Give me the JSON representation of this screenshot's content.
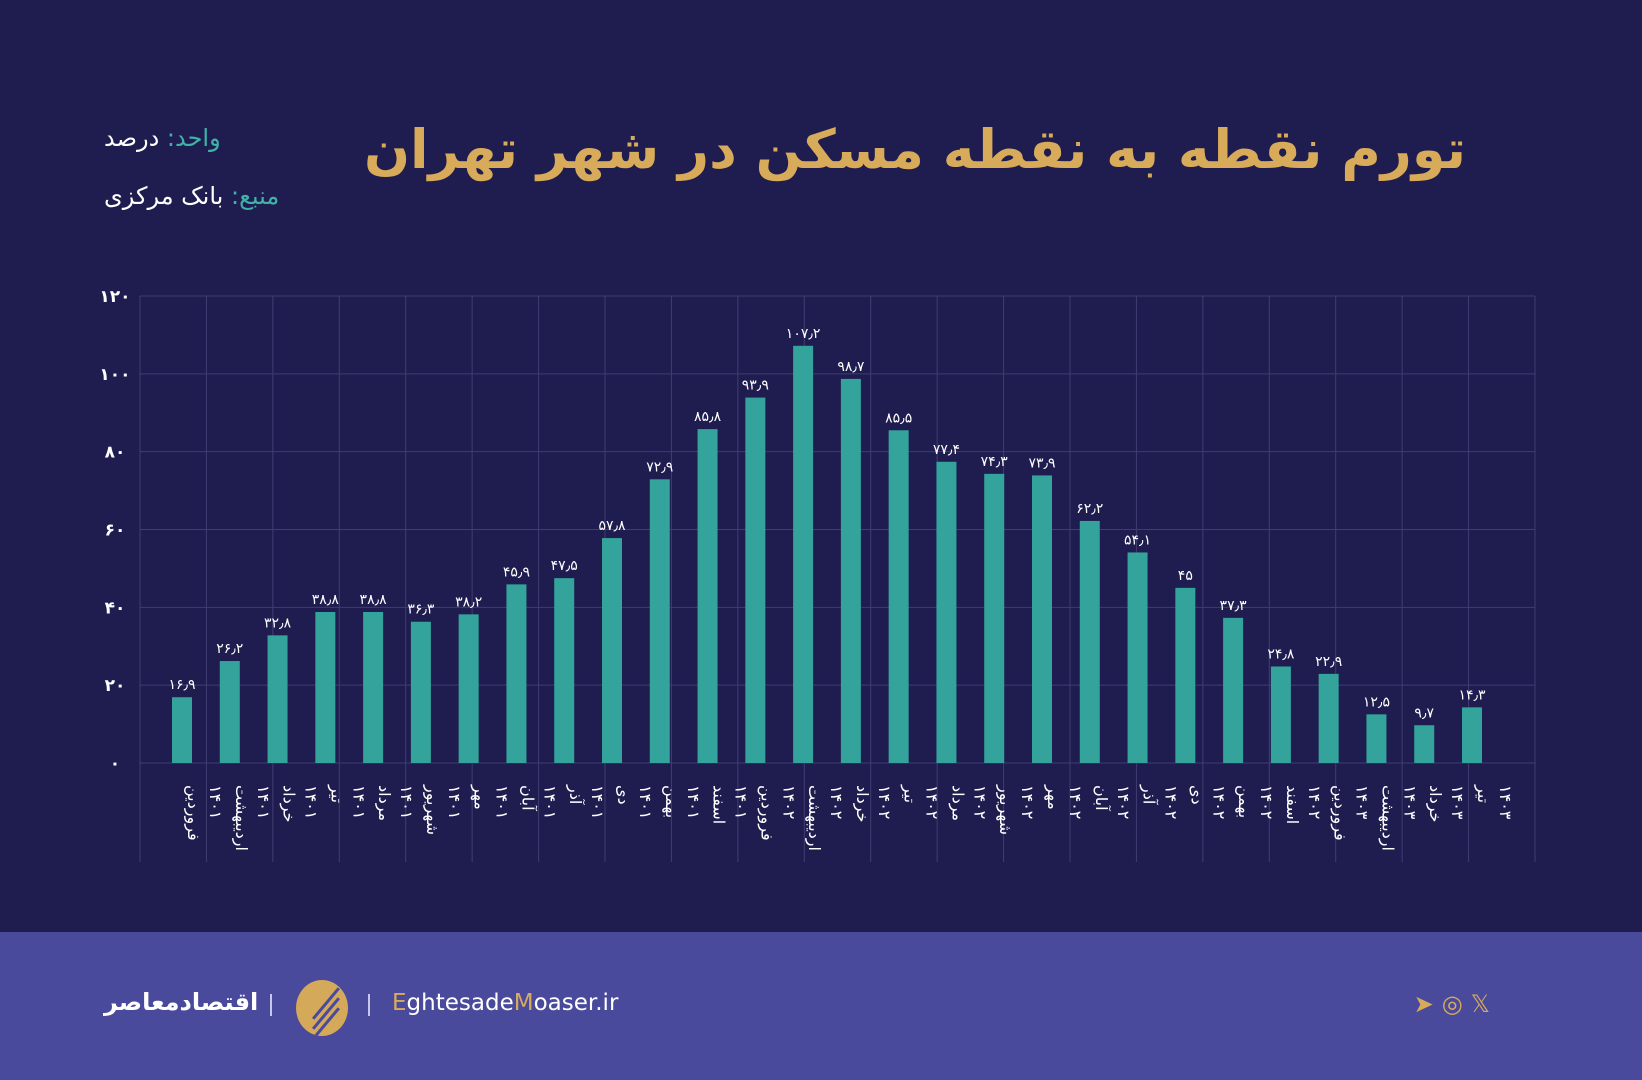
{
  "header": {
    "title": "تورم نقطه به نقطه مسکن در شهر تهران",
    "unit_key": "واحد:",
    "unit_value": "درصد",
    "source_key": "منبع:",
    "source_value": "بانک مرکزی"
  },
  "footer": {
    "brand": "اقتصادمعاصر",
    "site_e": "E",
    "site_1": "ghtesade",
    "site_m": "M",
    "site_2": "oaser.ir",
    "social": [
      "telegram-icon",
      "instagram-icon",
      "x-icon"
    ]
  },
  "colors": {
    "background": "#1f1d4f",
    "bar": "#33a39c",
    "title": "#d8ab5b",
    "footer": "#4a4a9c"
  },
  "chart_data": {
    "type": "bar",
    "title": "تورم نقطه به نقطه مسکن در شهر تهران",
    "ylim": [
      0,
      120
    ],
    "yticks": [
      0,
      20,
      40,
      60,
      80,
      100,
      120
    ],
    "ytick_labels": [
      "۰",
      "۲۰",
      "۴۰",
      "۶۰",
      "۸۰",
      "۱۰۰",
      "۱۲۰"
    ],
    "grid": true,
    "categories": [
      [
        "فروردین",
        "۱۴۰۱"
      ],
      [
        "اردیبهشت",
        "۱۴۰۱"
      ],
      [
        "خرداد",
        "۱۴۰۱"
      ],
      [
        "تیر",
        "۱۴۰۱"
      ],
      [
        "مرداد",
        "۱۴۰۱"
      ],
      [
        "شهریور",
        "۱۴۰۱"
      ],
      [
        "مهر",
        "۱۴۰۱"
      ],
      [
        "آبان",
        "۱۴۰۱"
      ],
      [
        "آذر",
        "۱۴۰۱"
      ],
      [
        "دی",
        "۱۴۰۱"
      ],
      [
        "بهمن",
        "۱۴۰۱"
      ],
      [
        "اسفند",
        "۱۴۰۱"
      ],
      [
        "فروردین",
        "۱۴۰۲"
      ],
      [
        "اردیبهشت",
        "۱۴۰۲"
      ],
      [
        "خرداد",
        "۱۴۰۲"
      ],
      [
        "تیر",
        "۱۴۰۲"
      ],
      [
        "مرداد",
        "۱۴۰۲"
      ],
      [
        "شهریور",
        "۱۴۰۲"
      ],
      [
        "مهر",
        "۱۴۰۲"
      ],
      [
        "آبان",
        "۱۴۰۲"
      ],
      [
        "آذر",
        "۱۴۰۲"
      ],
      [
        "دی",
        "۱۴۰۲"
      ],
      [
        "بهمن",
        "۱۴۰۲"
      ],
      [
        "اسفند",
        "۱۴۰۲"
      ],
      [
        "فروردین",
        "۱۴۰۳"
      ],
      [
        "اردیبهشت",
        "۱۴۰۳"
      ],
      [
        "خرداد",
        "۱۴۰۳"
      ],
      [
        "تیر",
        "۱۴۰۳"
      ]
    ],
    "values": [
      16.9,
      26.2,
      32.8,
      38.8,
      38.8,
      36.3,
      38.2,
      45.9,
      47.5,
      57.8,
      72.9,
      85.8,
      93.9,
      107.2,
      98.7,
      85.5,
      77.4,
      74.3,
      73.9,
      62.2,
      54.1,
      45,
      37.3,
      24.8,
      22.9,
      12.5,
      9.7,
      14.3
    ],
    "value_labels": [
      "۱۶٫۹",
      "۲۶٫۲",
      "۳۲٫۸",
      "۳۸٫۸",
      "۳۸٫۸",
      "۳۶٫۳",
      "۳۸٫۲",
      "۴۵٫۹",
      "۴۷٫۵",
      "۵۷٫۸",
      "۷۲٫۹",
      "۸۵٫۸",
      "۹۳٫۹",
      "۱۰۷٫۲",
      "۹۸٫۷",
      "۸۵٫۵",
      "۷۷٫۴",
      "۷۴٫۳",
      "۷۳٫۹",
      "۶۲٫۲",
      "۵۴٫۱",
      "۴۵",
      "۳۷٫۳",
      "۲۴٫۸",
      "۲۲٫۹",
      "۱۲٫۵",
      "۹٫۷",
      "۱۴٫۳"
    ]
  }
}
